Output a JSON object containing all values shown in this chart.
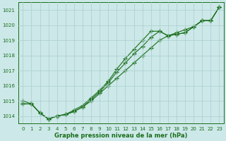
{
  "line1": [
    1014.8,
    1014.8,
    1014.2,
    1013.8,
    1014.0,
    1014.1,
    1014.3,
    1014.6,
    1015.0,
    1015.5,
    1016.0,
    1016.5,
    1017.0,
    1017.5,
    1018.0,
    1018.5,
    1019.0,
    1019.3,
    1019.5,
    1019.7,
    1019.9,
    1020.3,
    1020.3,
    1021.2
  ],
  "line2": [
    1014.8,
    1014.8,
    1014.2,
    1013.8,
    1014.0,
    1014.1,
    1014.3,
    1014.6,
    1015.1,
    1015.6,
    1016.2,
    1016.9,
    1017.5,
    1018.1,
    1018.6,
    1019.2,
    1019.6,
    1019.3,
    1019.4,
    1019.5,
    1019.9,
    1020.3,
    1020.3,
    1021.2
  ],
  "line3": [
    1015.0,
    1014.8,
    1014.2,
    1013.8,
    1014.0,
    1014.1,
    1014.4,
    1014.7,
    1015.2,
    1015.7,
    1016.3,
    1017.1,
    1017.8,
    1018.4,
    1019.0,
    1019.6,
    1019.6,
    1019.3,
    1019.4,
    1019.5,
    1019.9,
    1020.3,
    1020.3,
    1021.2
  ],
  "x": [
    0,
    1,
    2,
    3,
    4,
    5,
    6,
    7,
    8,
    9,
    10,
    11,
    12,
    13,
    14,
    15,
    16,
    17,
    18,
    19,
    20,
    21,
    22,
    23
  ],
  "ylim": [
    1013.5,
    1021.5
  ],
  "yticks": [
    1014,
    1015,
    1016,
    1017,
    1018,
    1019,
    1020,
    1021
  ],
  "xtick_labels": [
    "0",
    "1",
    "2",
    "3",
    "4",
    "5",
    "6",
    "7",
    "8",
    "9",
    "10",
    "11",
    "12",
    "13",
    "14",
    "15",
    "16",
    "17",
    "18",
    "19",
    "20",
    "21",
    "22",
    "23"
  ],
  "xlabel": "Graphe pression niveau de la mer (hPa)",
  "line_color": "#1a6e1a",
  "bg_color": "#cce8e8",
  "grid_color": "#aacece",
  "marker": "+",
  "marker_size": 4.0,
  "linewidth": 0.8,
  "figsize": [
    3.2,
    2.0
  ],
  "dpi": 100
}
